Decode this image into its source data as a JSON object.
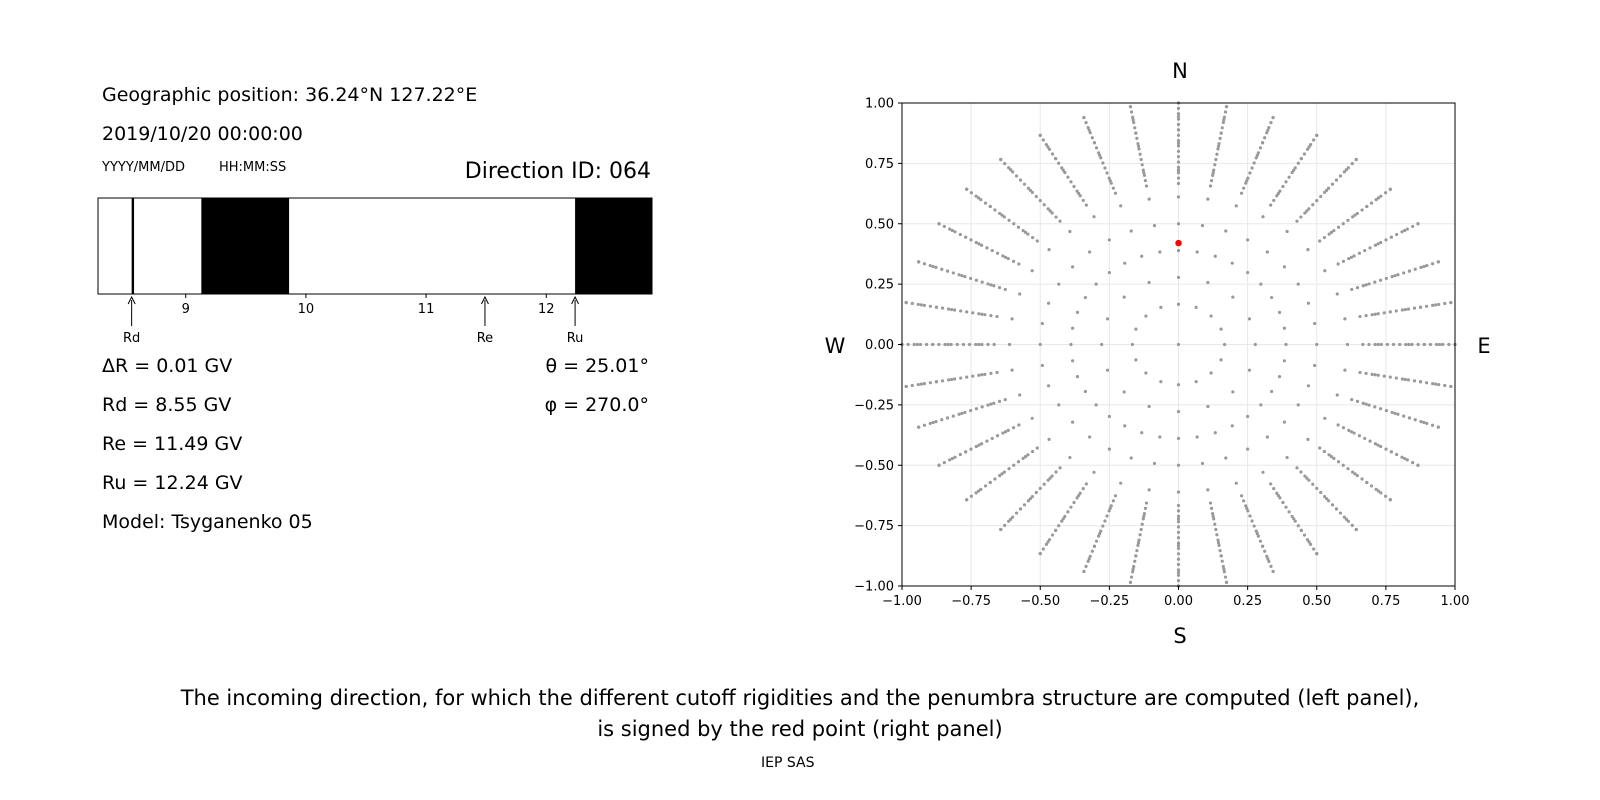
{
  "header": {
    "position": "Geographic position: 36.24°N 127.22°E",
    "datetime": "2019/10/20 00:00:00",
    "date_format": "YYYY/MM/DD",
    "time_format": "HH:MM:SS",
    "direction_id": "Direction ID: 064"
  },
  "params_left": {
    "delta_r": "ΔR = 0.01 GV",
    "rd": "Rd = 8.55 GV",
    "re": "Re = 11.49 GV",
    "ru": "Ru = 12.24 GV",
    "model": "Model: Tsyganenko 05"
  },
  "params_right": {
    "theta": "θ = 25.01°",
    "phi": "φ = 270.0°"
  },
  "compass": {
    "n": "N",
    "s": "S",
    "e": "E",
    "w": "W"
  },
  "caption": {
    "line1": "The incoming direction, for which the different cutoff rigidities and the penumbra structure are computed (left panel),",
    "line2": "is signed by the red point (right panel)",
    "credit": "IEP SAS"
  },
  "chart_data": [
    {
      "type": "penumbra",
      "x_range": [
        8.27,
        12.88
      ],
      "x_ticks": [
        9,
        10,
        11,
        12
      ],
      "allowed_color": "#ffffff",
      "forbidden_color": "#000000",
      "forbidden_bands": [
        [
          8.55,
          8.57
        ],
        [
          9.13,
          9.86
        ],
        [
          12.24,
          12.88
        ]
      ],
      "markers": [
        {
          "label": "Rd",
          "value": 8.55
        },
        {
          "label": "Re",
          "value": 11.49
        },
        {
          "label": "Ru",
          "value": 12.24
        }
      ]
    },
    {
      "type": "scatter",
      "xlim": [
        -1.0,
        1.0
      ],
      "ylim": [
        -1.0,
        1.0
      ],
      "x_ticks": [
        -1.0,
        -0.75,
        -0.5,
        -0.25,
        0.0,
        0.25,
        0.5,
        0.75,
        1.0
      ],
      "y_ticks": [
        -1.0,
        -0.75,
        -0.5,
        -0.25,
        0.0,
        0.25,
        0.5,
        0.75,
        1.0
      ],
      "grid": true,
      "grid_directions": {
        "zenith_deg": [
          0,
          15,
          25,
          35,
          45,
          55,
          65,
          75,
          80,
          85,
          90
        ],
        "azimuth_step_deg": 10,
        "radial_pts_per_ring_deg": [
          15,
          22.5
        ]
      },
      "point_color": "#999999",
      "selected": {
        "x": 0.0,
        "y": 0.42,
        "color": "#ff0000"
      }
    }
  ]
}
